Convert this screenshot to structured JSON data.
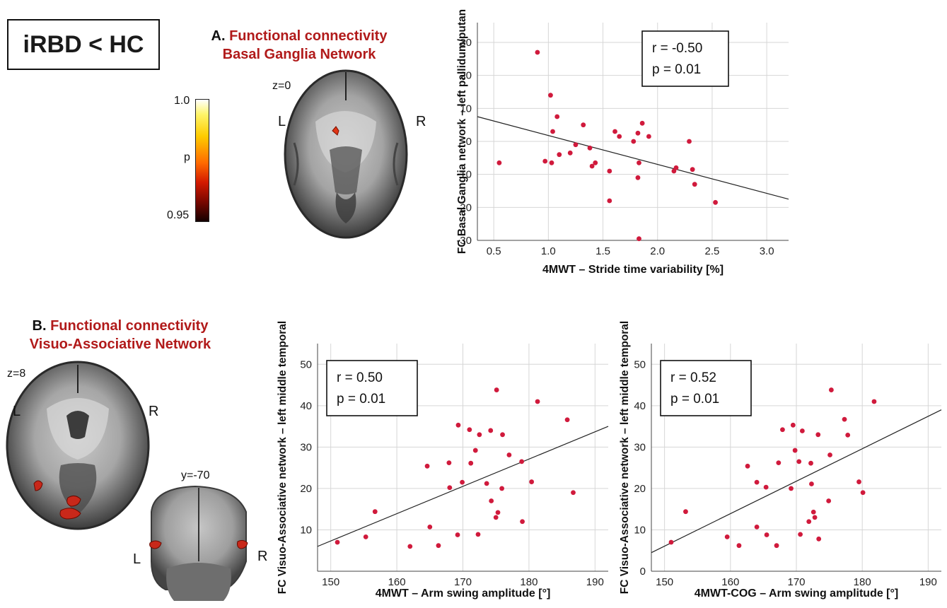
{
  "header": {
    "contrast": "iRBD < HC"
  },
  "panel_a": {
    "letter": "A.",
    "title_line1": "Functional connectivity",
    "title_line2": "Basal Ganglia Network",
    "slice": "z=0",
    "left": "L",
    "right": "R",
    "colorbar": {
      "top": "1.0",
      "mid": "p",
      "bottom": "0.95"
    }
  },
  "panel_b": {
    "letter": "B.",
    "title_line1": "Functional connectivity",
    "title_line2": "Visuo-Associative Network",
    "slice_axial": "z=8",
    "slice_coronal": "y=-70",
    "left": "L",
    "right": "R"
  },
  "colors": {
    "point": "#d01a3c",
    "line": "#222222",
    "grid": "#d6d6d6",
    "title_red": "#b11a1a"
  },
  "chart_data": [
    {
      "type": "scatter",
      "xlabel": "4MWT – Stride time variability [%]",
      "ylabel": "FC Basal Ganglia network – left pallidum/putan",
      "xlim": [
        0.35,
        3.2
      ],
      "ylim": [
        -30,
        36
      ],
      "xticks": [
        "0.5",
        "1.0",
        "1.5",
        "2.0",
        "2.5",
        "3.0"
      ],
      "yticks": [
        "-30",
        "-20",
        "-10",
        "0",
        "10",
        "20",
        "30"
      ],
      "grid": true,
      "annotation": [
        "r = -0.50",
        "p = 0.01"
      ],
      "annotation_position": "top-right",
      "regression": {
        "x": [
          0.35,
          3.2
        ],
        "y": [
          7.5,
          -17.5
        ]
      },
      "points": [
        [
          0.55,
          -6.5
        ],
        [
          0.9,
          27
        ],
        [
          0.97,
          -6
        ],
        [
          1.02,
          14
        ],
        [
          1.03,
          -6.5
        ],
        [
          1.04,
          3
        ],
        [
          1.08,
          7.5
        ],
        [
          1.1,
          -4
        ],
        [
          1.2,
          -3.5
        ],
        [
          1.25,
          -1
        ],
        [
          1.32,
          5
        ],
        [
          1.38,
          -2
        ],
        [
          1.4,
          -7.5
        ],
        [
          1.43,
          -6.5
        ],
        [
          1.56,
          -9
        ],
        [
          1.56,
          -18
        ],
        [
          1.61,
          3
        ],
        [
          1.65,
          1.5
        ],
        [
          1.78,
          0
        ],
        [
          1.82,
          2.5
        ],
        [
          1.82,
          -11
        ],
        [
          1.83,
          -6.5
        ],
        [
          1.86,
          5.5
        ],
        [
          1.83,
          -29.5
        ],
        [
          1.92,
          1.5
        ],
        [
          2.15,
          -9
        ],
        [
          2.17,
          -8
        ],
        [
          2.29,
          0
        ],
        [
          2.32,
          -8.5
        ],
        [
          2.34,
          -13
        ],
        [
          2.53,
          -18.5
        ]
      ]
    },
    {
      "type": "scatter",
      "xlabel": "4MWT – Arm swing amplitude [°]",
      "ylabel": "FC Visuo-Associative network – left middle temporal",
      "xlim": [
        148,
        192
      ],
      "ylim": [
        0,
        55
      ],
      "xticks": [
        "150",
        "160",
        "170",
        "180",
        "190"
      ],
      "yticks": [
        "10",
        "20",
        "30",
        "40",
        "50"
      ],
      "grid": true,
      "annotation": [
        "r = 0.50",
        "p = 0.01"
      ],
      "annotation_position": "top-left",
      "regression": {
        "x": [
          148,
          192
        ],
        "y": [
          6,
          35
        ]
      },
      "points": [
        [
          151,
          7
        ],
        [
          155.3,
          8.3
        ],
        [
          156.7,
          14.4
        ],
        [
          162,
          6
        ],
        [
          164.6,
          25.4
        ],
        [
          165,
          10.7
        ],
        [
          166.3,
          6.2
        ],
        [
          167.9,
          26.2
        ],
        [
          168,
          20.2
        ],
        [
          169.2,
          8.8
        ],
        [
          169.3,
          35.3
        ],
        [
          169.9,
          21.5
        ],
        [
          171,
          34.2
        ],
        [
          171.2,
          26.1
        ],
        [
          171.9,
          29.2
        ],
        [
          172.3,
          8.9
        ],
        [
          172.5,
          33
        ],
        [
          173.6,
          21.2
        ],
        [
          174.2,
          34
        ],
        [
          174.3,
          17
        ],
        [
          175.1,
          43.8
        ],
        [
          175,
          13
        ],
        [
          175.3,
          14.2
        ],
        [
          175.9,
          20
        ],
        [
          176,
          33
        ],
        [
          177,
          28.1
        ],
        [
          178.9,
          26.5
        ],
        [
          179,
          12
        ],
        [
          180.4,
          21.6
        ],
        [
          181.3,
          41
        ],
        [
          185.8,
          36.6
        ],
        [
          186.7,
          19
        ]
      ]
    },
    {
      "type": "scatter",
      "xlabel": "4MWT-COG – Arm swing amplitude [°]",
      "ylabel": "FC Visuo-Associative network – left middle temporal",
      "xlim": [
        148,
        192
      ],
      "ylim": [
        0,
        55
      ],
      "xticks": [
        "150",
        "160",
        "170",
        "180",
        "190"
      ],
      "yticks": [
        "0",
        "10",
        "20",
        "30",
        "40",
        "50"
      ],
      "grid": true,
      "annotation": [
        "r = 0.52",
        "p = 0.01"
      ],
      "annotation_position": "top-left",
      "regression": {
        "x": [
          148,
          192
        ],
        "y": [
          4.5,
          39
        ]
      },
      "points": [
        [
          151,
          7
        ],
        [
          153.2,
          14.4
        ],
        [
          159.5,
          8.3
        ],
        [
          161.3,
          6.2
        ],
        [
          162.6,
          25.4
        ],
        [
          164,
          21.5
        ],
        [
          164,
          10.7
        ],
        [
          165.4,
          20.3
        ],
        [
          165.5,
          8.8
        ],
        [
          167,
          6.2
        ],
        [
          167.3,
          26.2
        ],
        [
          167.9,
          34.2
        ],
        [
          169.2,
          20
        ],
        [
          169.5,
          35.3
        ],
        [
          169.8,
          29.2
        ],
        [
          170.4,
          26.5
        ],
        [
          170.6,
          8.9
        ],
        [
          170.9,
          33.9
        ],
        [
          171.9,
          12
        ],
        [
          172.2,
          26.1
        ],
        [
          172.3,
          21.1
        ],
        [
          172.6,
          14.3
        ],
        [
          172.8,
          13
        ],
        [
          173.3,
          33
        ],
        [
          173.4,
          7.8
        ],
        [
          174.9,
          17
        ],
        [
          175.1,
          28.1
        ],
        [
          175.3,
          43.8
        ],
        [
          177.3,
          36.7
        ],
        [
          177.8,
          32.9
        ],
        [
          179.5,
          21.6
        ],
        [
          180.1,
          19
        ],
        [
          181.8,
          41
        ]
      ]
    }
  ]
}
